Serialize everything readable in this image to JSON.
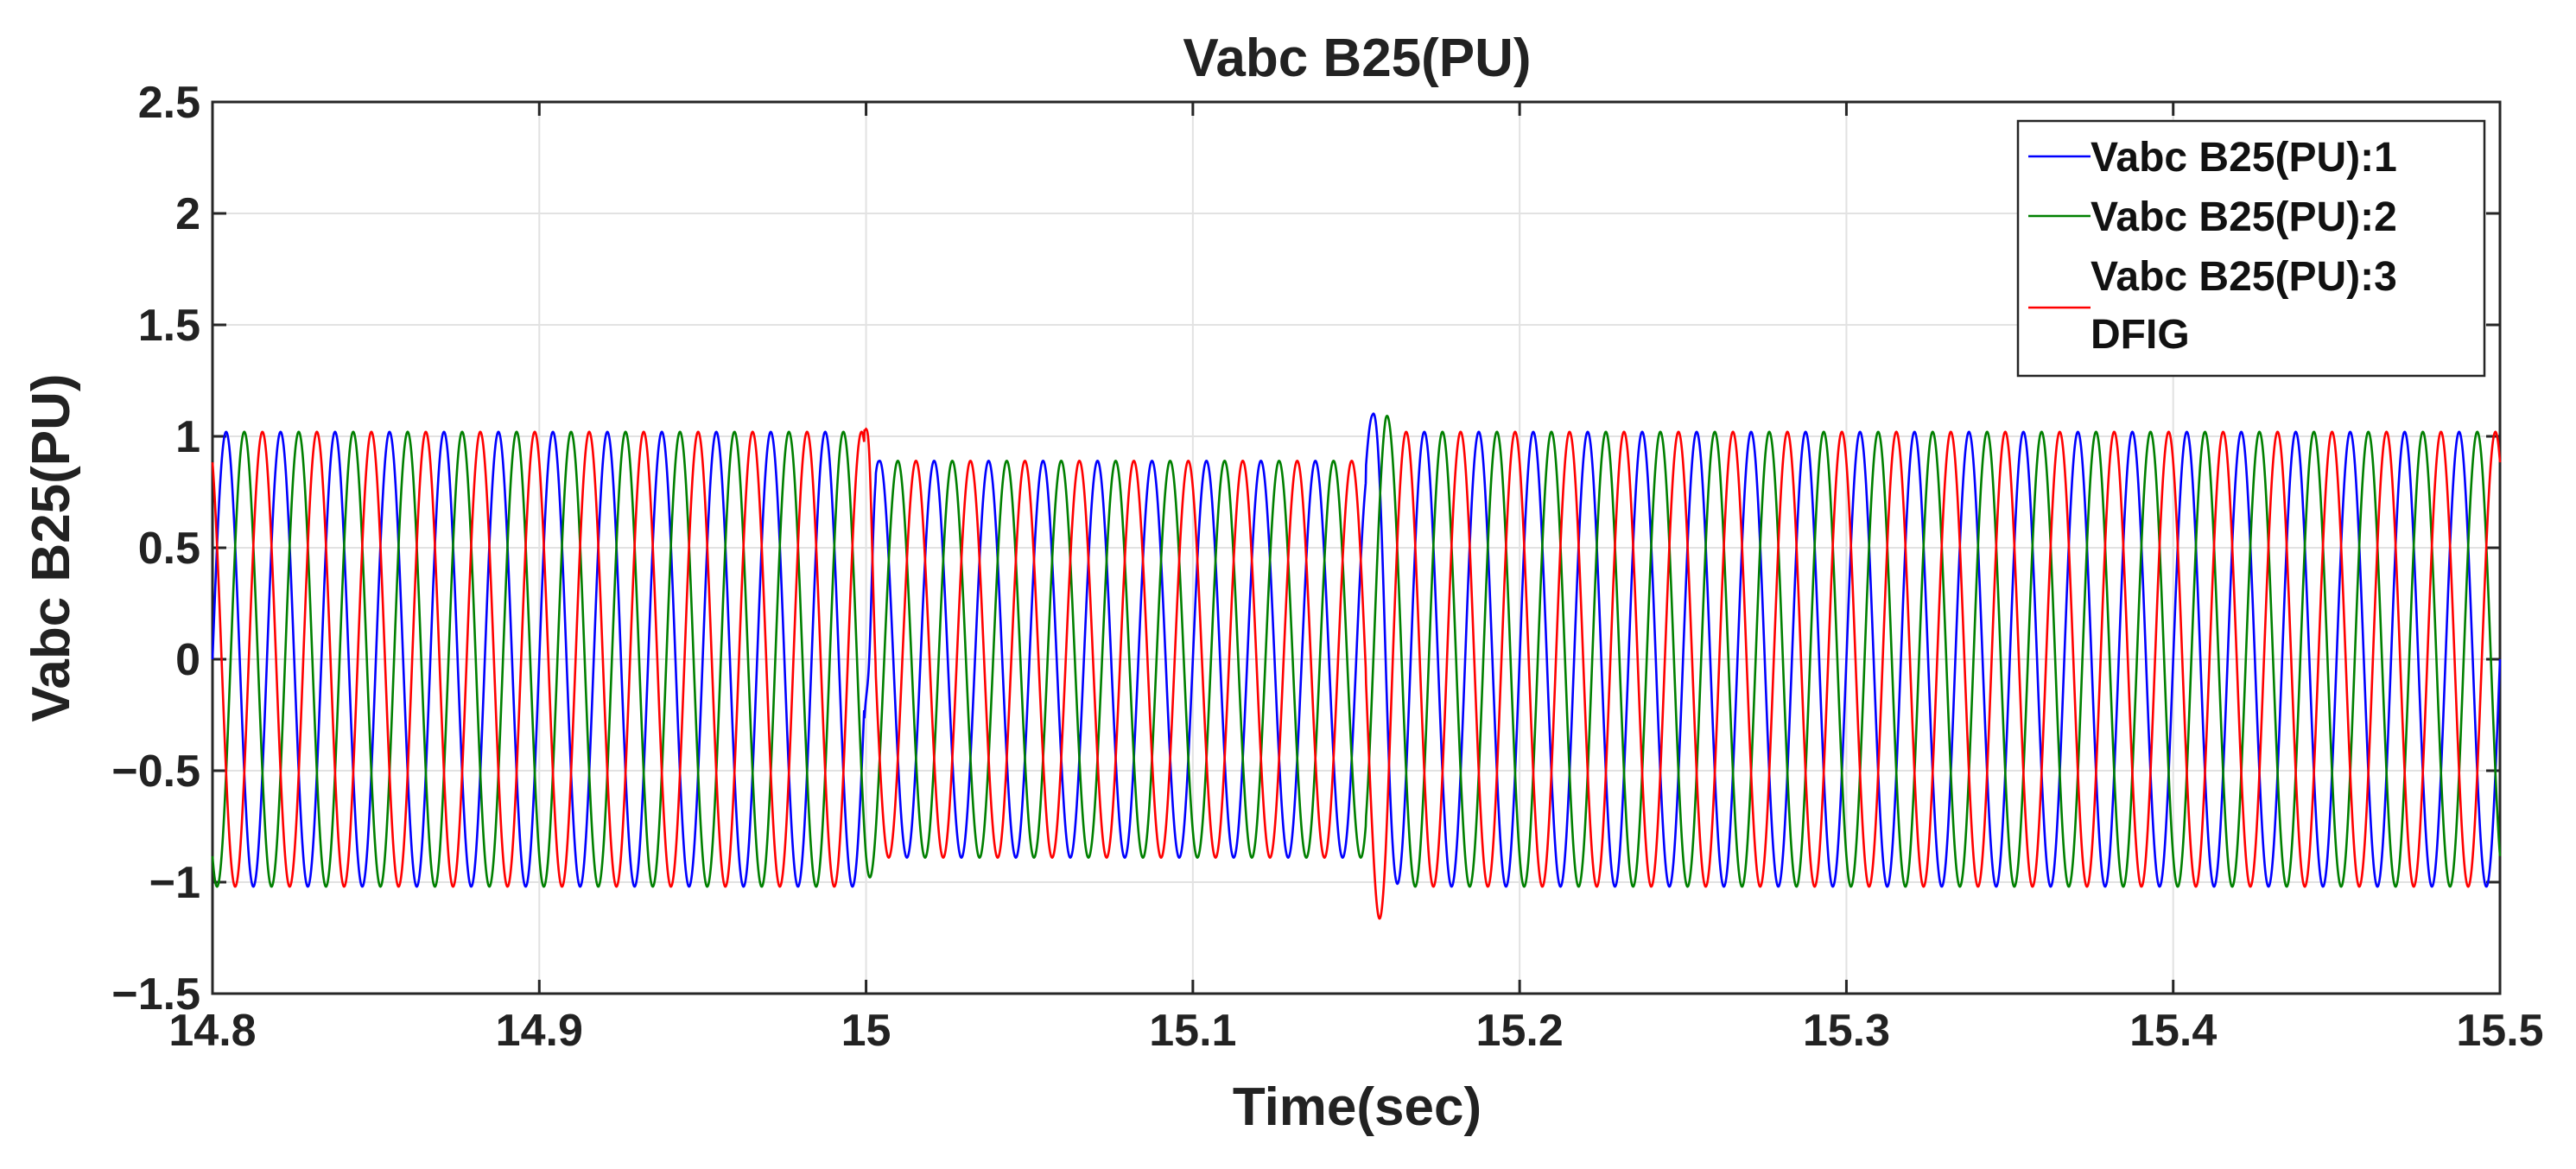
{
  "chart_data": {
    "type": "line",
    "title": "Vabc B25(PU)",
    "xlabel": "Time(sec)",
    "ylabel": "Vabc B25(PU)",
    "xlim": [
      14.8,
      15.5
    ],
    "ylim": [
      -1.5,
      2.5
    ],
    "xticks": [
      14.8,
      14.9,
      15,
      15.1,
      15.2,
      15.3,
      15.4,
      15.5
    ],
    "xtick_labels": [
      "14.8",
      "14.9",
      "15",
      "15.1",
      "15.2",
      "15.3",
      "15.4",
      "15.5"
    ],
    "yticks": [
      -1.5,
      -1,
      -0.5,
      0,
      0.5,
      1,
      1.5,
      2,
      2.5
    ],
    "ytick_labels": [
      "−1.5",
      "−1",
      "−0.5",
      "0",
      "0.5",
      "1",
      "1.5",
      "2",
      "2.5"
    ],
    "grid": true,
    "legend_position": "top-right",
    "frequency_hz": 60,
    "sag": {
      "start": 15.0,
      "end": 15.155,
      "amplitude": 0.89
    },
    "normal_amplitude": 1.02,
    "transient_peak": 1.28,
    "transient_trough": -1.12,
    "series": [
      {
        "name": "Vabc B25(PU):1",
        "color": "#0000ff",
        "phase_deg": 0
      },
      {
        "name": "Vabc B25(PU):2",
        "color": "#008000",
        "phase_deg": -120
      },
      {
        "name": "Vabc B25(PU):3",
        "color": "#ff0000",
        "phase_deg": 120
      }
    ],
    "legend_extra": "DFIG"
  }
}
